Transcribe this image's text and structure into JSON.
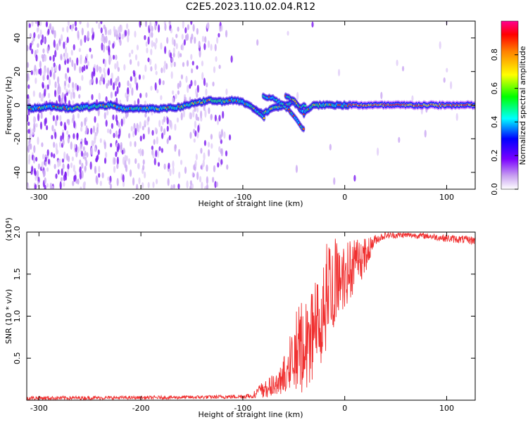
{
  "title": "C2E5.2023.110.02.04.R12",
  "chart_data": [
    {
      "type": "heatmap",
      "xlabel": "Height of straight line (km)",
      "ylabel": "Frequency (Hz)",
      "xlim": [
        -312,
        128
      ],
      "ylim": [
        -50,
        50
      ],
      "xticks": [
        -300,
        -200,
        -100,
        0,
        100
      ],
      "yticks": [
        -40,
        -20,
        0,
        20,
        40
      ],
      "colorbar": {
        "label": "Normalized spectral amplitude",
        "ticks": [
          "0.0",
          "0.2",
          "0.4",
          "0.6",
          "0.8"
        ],
        "range": [
          0,
          1
        ]
      },
      "ridge": [
        {
          "x": -310,
          "f": -2
        },
        {
          "x": -290,
          "f": -1
        },
        {
          "x": -270,
          "f": -2
        },
        {
          "x": -250,
          "f": -1
        },
        {
          "x": -230,
          "f": 0
        },
        {
          "x": -220,
          "f": -2
        },
        {
          "x": -200,
          "f": -2
        },
        {
          "x": -180,
          "f": -2
        },
        {
          "x": -160,
          "f": -1
        },
        {
          "x": -150,
          "f": 1
        },
        {
          "x": -140,
          "f": 2
        },
        {
          "x": -130,
          "f": 3
        },
        {
          "x": -120,
          "f": 2
        },
        {
          "x": -110,
          "f": 3
        },
        {
          "x": -100,
          "f": 2
        },
        {
          "x": -90,
          "f": -2
        },
        {
          "x": -80,
          "f": -5
        },
        {
          "x": -70,
          "f": -2
        },
        {
          "x": -60,
          "f": 0
        },
        {
          "x": -50,
          "f": 2
        },
        {
          "x": -40,
          "f": -5
        },
        {
          "x": -35,
          "f": -2
        },
        {
          "x": -30,
          "f": 0
        },
        {
          "x": -20,
          "f": 0
        },
        {
          "x": -10,
          "f": 0
        },
        {
          "x": 0,
          "f": 0
        },
        {
          "x": 20,
          "f": 0
        },
        {
          "x": 60,
          "f": 0
        },
        {
          "x": 100,
          "f": 0
        },
        {
          "x": 128,
          "f": 0
        }
      ],
      "branches": [
        [
          {
            "x": -80,
            "f": 5
          },
          {
            "x": -70,
            "f": 4
          },
          {
            "x": -60,
            "f": 0
          },
          {
            "x": -50,
            "f": -6
          },
          {
            "x": -40,
            "f": -15
          }
        ],
        [
          {
            "x": -90,
            "f": -1
          },
          {
            "x": -84,
            "f": -5
          },
          {
            "x": -78,
            "f": -8
          }
        ],
        [
          {
            "x": -58,
            "f": 6
          },
          {
            "x": -50,
            "f": 3
          },
          {
            "x": -44,
            "f": -1
          },
          {
            "x": -38,
            "f": 0
          }
        ]
      ]
    },
    {
      "type": "line",
      "xlabel": "Height of straight line (km)",
      "ylabel": "SNR (10 * v/v)",
      "scale_label": "(x10⁴)",
      "xlim": [
        -312,
        128
      ],
      "ylim": [
        0,
        20000
      ],
      "xticks": [
        -300,
        -200,
        -100,
        0,
        100
      ],
      "yticks": [
        5000,
        10000,
        15000,
        20000
      ],
      "ytick_labels": [
        "0.5",
        "1.0",
        "1.5",
        "2.0"
      ],
      "series": [
        {
          "color": "#f03030",
          "envelope": [
            {
              "x": -312,
              "lo": 0,
              "hi": 500
            },
            {
              "x": -200,
              "lo": 100,
              "hi": 500
            },
            {
              "x": -130,
              "lo": 150,
              "hi": 600
            },
            {
              "x": -100,
              "lo": 200,
              "hi": 700
            },
            {
              "x": -90,
              "lo": 250,
              "hi": 900
            },
            {
              "x": -80,
              "lo": 300,
              "hi": 2500
            },
            {
              "x": -70,
              "lo": 400,
              "hi": 3000
            },
            {
              "x": -60,
              "lo": 500,
              "hi": 5000
            },
            {
              "x": -50,
              "lo": 700,
              "hi": 10000
            },
            {
              "x": -45,
              "lo": 800,
              "hi": 11500
            },
            {
              "x": -40,
              "lo": 1000,
              "hi": 12000
            },
            {
              "x": -35,
              "lo": 1500,
              "hi": 13000
            },
            {
              "x": -30,
              "lo": 2000,
              "hi": 14000
            },
            {
              "x": -25,
              "lo": 3000,
              "hi": 15500
            },
            {
              "x": -20,
              "lo": 5000,
              "hi": 20000
            },
            {
              "x": -15,
              "lo": 7000,
              "hi": 19000
            },
            {
              "x": -10,
              "lo": 9000,
              "hi": 19500
            },
            {
              "x": -5,
              "lo": 10000,
              "hi": 19500
            },
            {
              "x": 0,
              "lo": 11000,
              "hi": 19000
            },
            {
              "x": 10,
              "lo": 13000,
              "hi": 19500
            },
            {
              "x": 20,
              "lo": 15000,
              "hi": 19500
            },
            {
              "x": 25,
              "lo": 17000,
              "hi": 19500
            },
            {
              "x": 30,
              "lo": 18500,
              "hi": 19700
            },
            {
              "x": 40,
              "lo": 19200,
              "hi": 20000
            },
            {
              "x": 60,
              "lo": 19300,
              "hi": 20000
            },
            {
              "x": 80,
              "lo": 19200,
              "hi": 19900
            },
            {
              "x": 100,
              "lo": 18800,
              "hi": 19700
            },
            {
              "x": 128,
              "lo": 18500,
              "hi": 19500
            }
          ]
        }
      ]
    }
  ]
}
